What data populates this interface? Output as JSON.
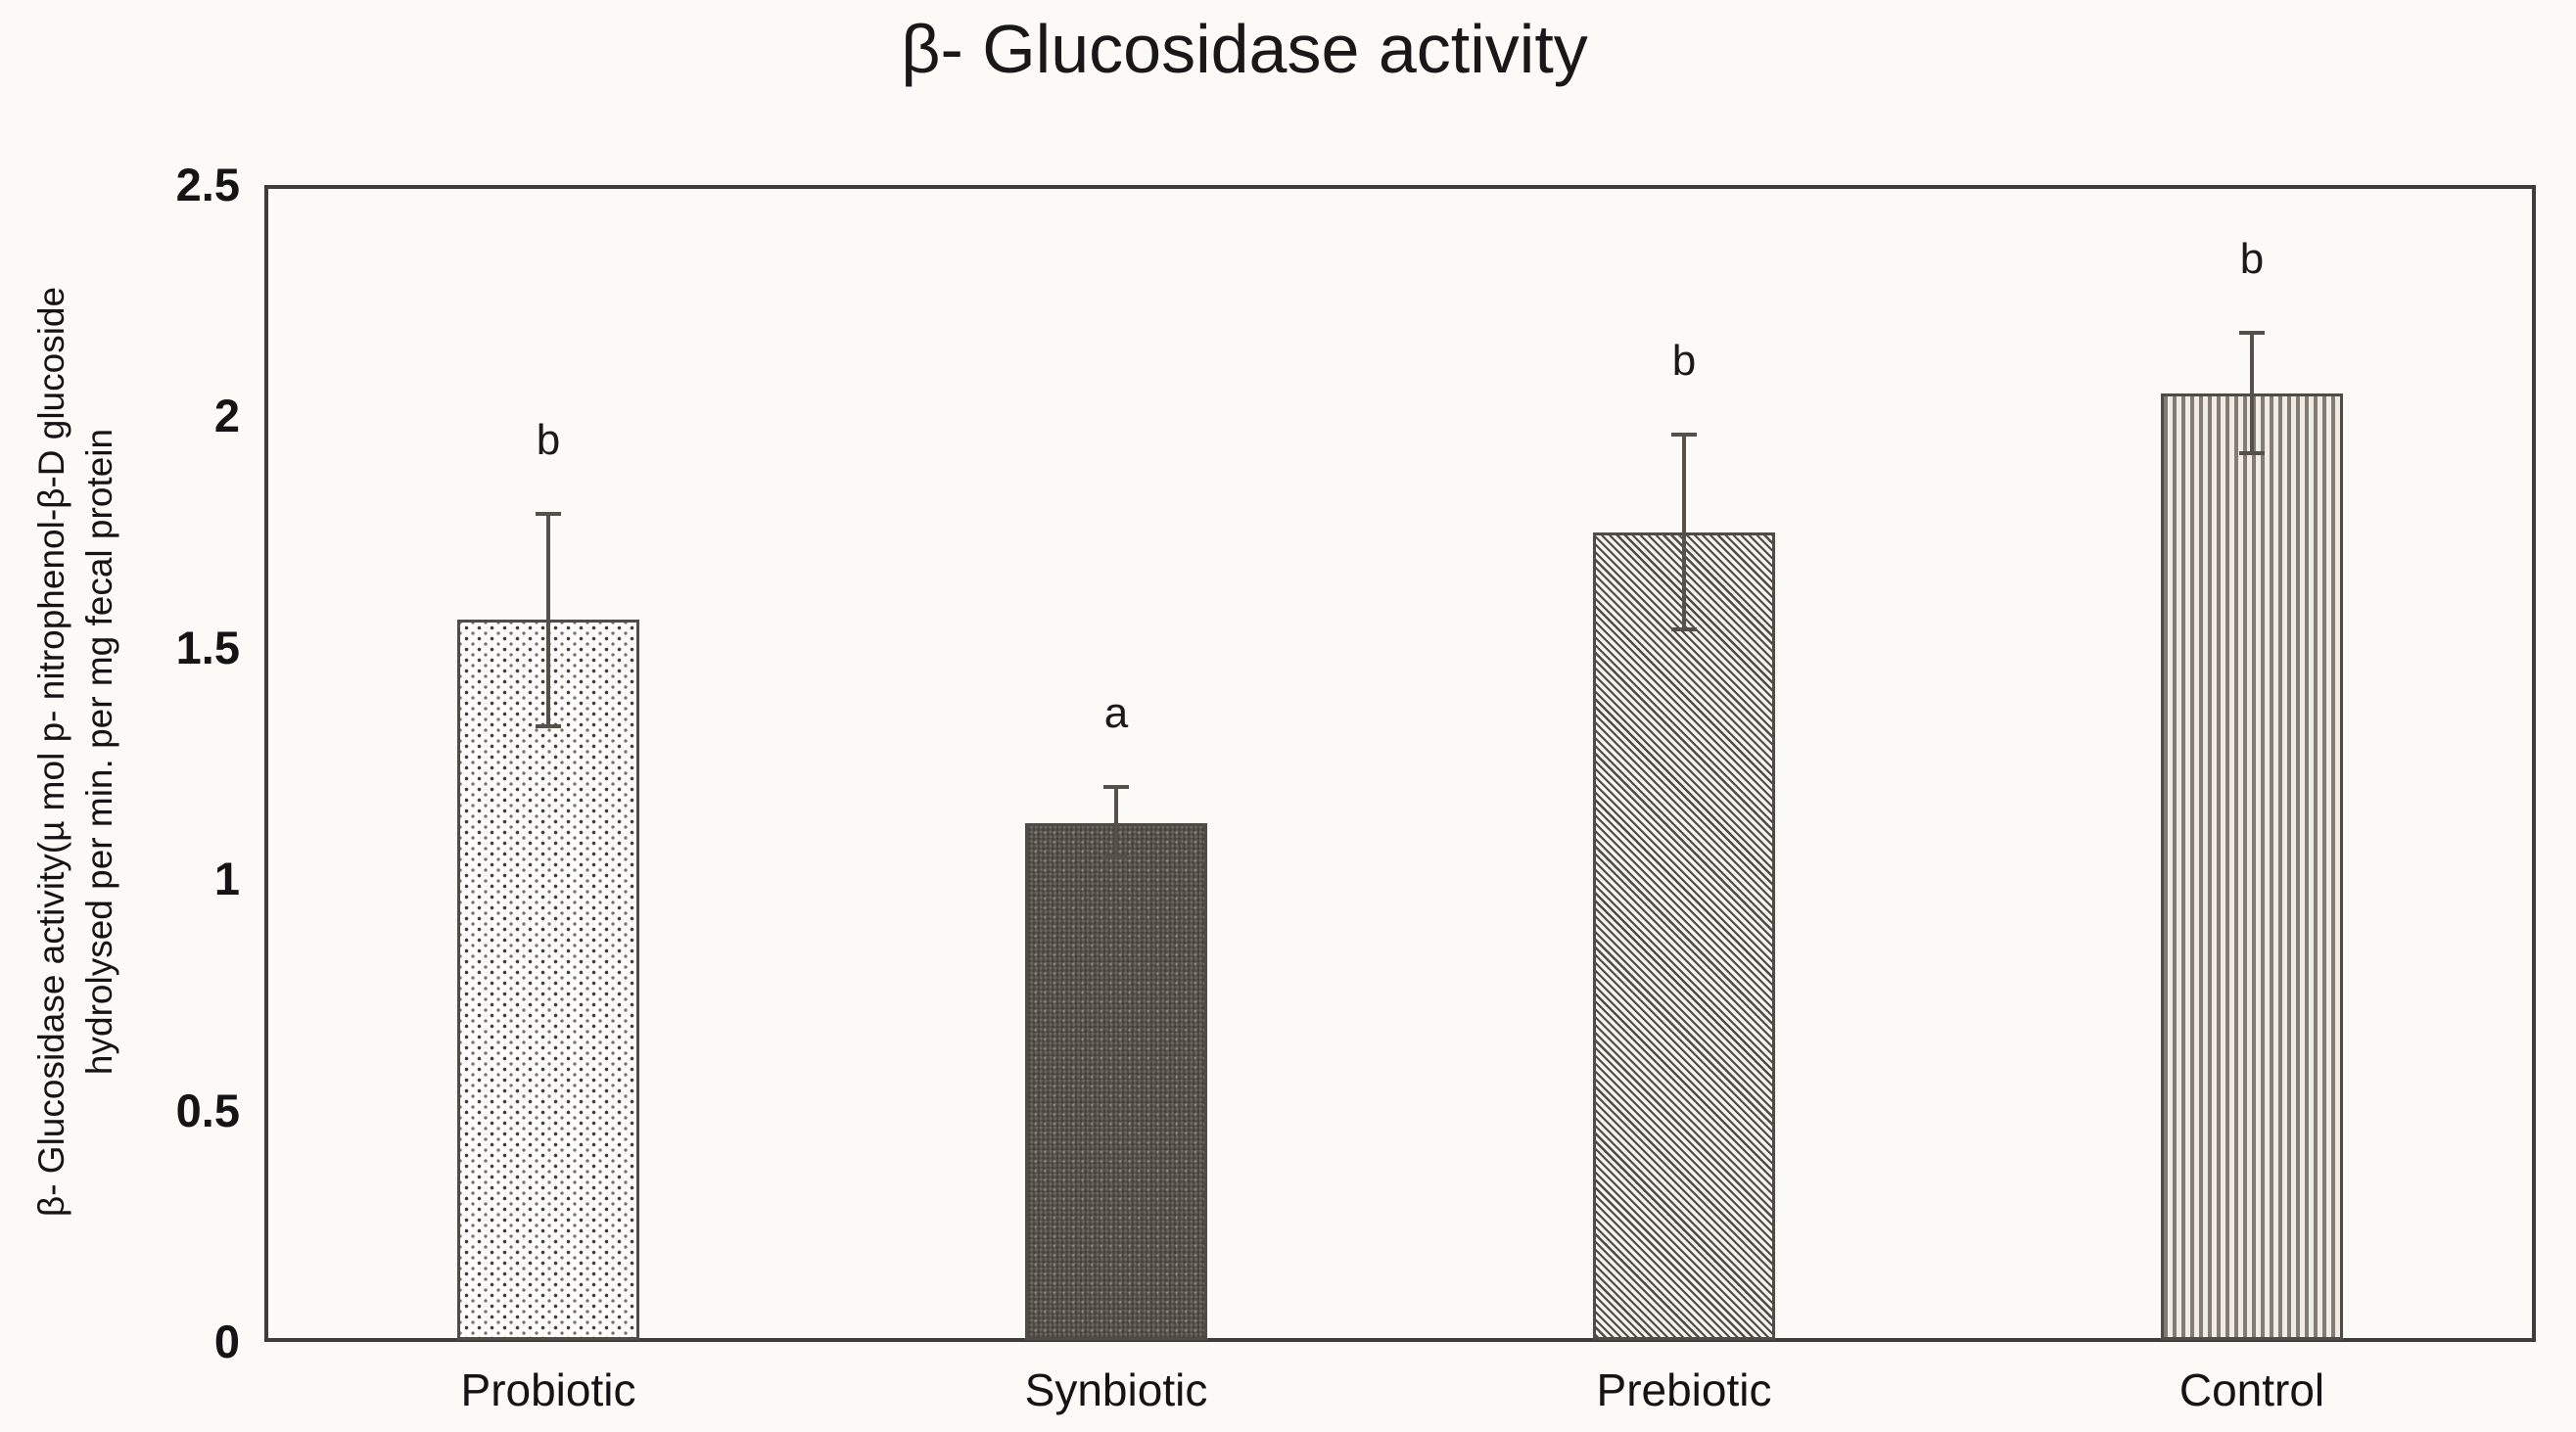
{
  "title": "β- Glucosidase activity",
  "y_axis": {
    "label_line1": "β- Glucosidase activity(µ mol p- nitrophenol-β-D glucoside",
    "label_line2": "hydrolysed per min. per mg fecal protein"
  },
  "chart_data": {
    "type": "bar",
    "title": "β- Glucosidase activity",
    "categories": [
      "Probiotic",
      "Synbiotic",
      "Prebiotic",
      "Control"
    ],
    "values": [
      1.56,
      1.12,
      1.75,
      2.05
    ],
    "error_high": [
      1.79,
      1.2,
      1.96,
      2.18
    ],
    "error_low": [
      1.33,
      1.05,
      1.54,
      1.92
    ],
    "sig_letters": [
      "b",
      "a",
      "b",
      "b"
    ],
    "ylabel": "β- Glucosidase activity(µ mol p- nitrophenol-β-D glucoside hydrolysed per min. per mg fecal protein",
    "xlabel": "",
    "ylim": [
      0,
      2.5
    ],
    "yticks": [
      0,
      0.5,
      1,
      1.5,
      2,
      2.5
    ],
    "ytick_labels": [
      "0",
      "0.5",
      "1",
      "1.5",
      "2",
      "2.5"
    ],
    "grid": false,
    "legend_position": "none",
    "bar_patterns": [
      "light-dots",
      "dark-dots",
      "diagonal-hatch",
      "vertical-lines"
    ],
    "colors": {
      "background": "#fbfaf7",
      "frame": "#3d3d3d",
      "bar_outline": "#504b45",
      "error_bar": "#55504a",
      "text": "#141414"
    }
  }
}
